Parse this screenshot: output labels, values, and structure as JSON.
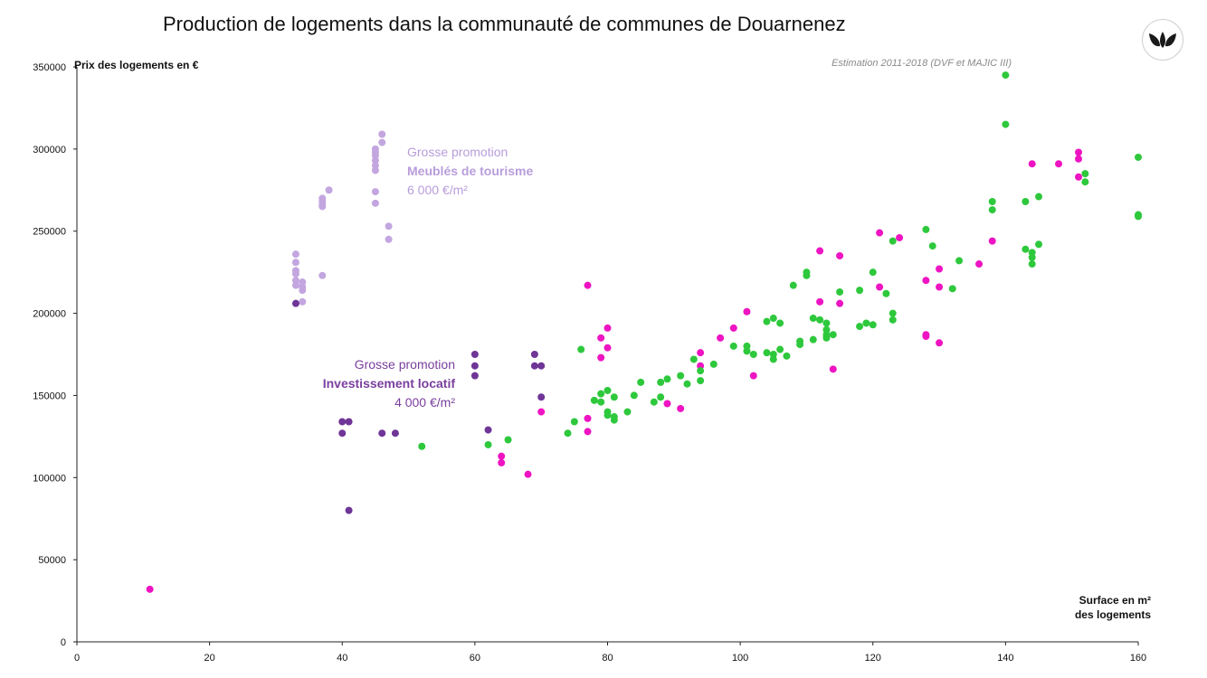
{
  "chart_data": {
    "type": "scatter",
    "title": "Production de logements dans la communauté de communes de Douarnenez",
    "subtitle": "Estimation 2011-2018 (DVF et MAJIC III)",
    "xlabel": [
      "Surface en m²",
      "des logements"
    ],
    "ylabel": "Prix des logements en €",
    "xlim": [
      0,
      160
    ],
    "ylim": [
      0,
      350000
    ],
    "x_ticks": [
      "0",
      "20",
      "40",
      "60",
      "80",
      "100",
      "120",
      "140",
      "160"
    ],
    "y_ticks": [
      "0",
      "50000",
      "100000",
      "150000",
      "200000",
      "250000",
      "300000",
      "350000"
    ],
    "grid": false,
    "legend": null,
    "annotations": [
      {
        "id": "meubles",
        "color": "#b89ddb",
        "lines": [
          {
            "text": "Grosse promotion",
            "bold": false
          },
          {
            "text": "Meublés de tourisme",
            "bold": true
          },
          {
            "text": "6 000 €/m²",
            "bold": false
          }
        ]
      },
      {
        "id": "invest",
        "color": "#7a3f9e",
        "lines": [
          {
            "text": "Grosse promotion",
            "bold": false
          },
          {
            "text": "Investissement locatif",
            "bold": true
          },
          {
            "text": "4 000 €/m²",
            "bold": false
          }
        ]
      }
    ],
    "series": [
      {
        "color": "#c3a6e0",
        "points": [
          [
            33,
            236000
          ],
          [
            33,
            231000
          ],
          [
            33,
            226000
          ],
          [
            33,
            224000
          ],
          [
            33,
            220000
          ],
          [
            33,
            217000
          ],
          [
            34,
            219000
          ],
          [
            34,
            216000
          ],
          [
            34,
            214000
          ],
          [
            34,
            207000
          ],
          [
            37,
            223000
          ],
          [
            37,
            270000
          ],
          [
            37,
            268000
          ],
          [
            37,
            266000
          ],
          [
            37,
            265000
          ],
          [
            38,
            275000
          ],
          [
            45,
            300000
          ],
          [
            45,
            298000
          ],
          [
            45,
            296000
          ],
          [
            45,
            293000
          ],
          [
            45,
            290000
          ],
          [
            45,
            287000
          ],
          [
            45,
            274000
          ],
          [
            45,
            267000
          ],
          [
            46,
            309000
          ],
          [
            46,
            304000
          ],
          [
            47,
            253000
          ],
          [
            47,
            245000
          ]
        ]
      },
      {
        "color": "#6f3597",
        "points": [
          [
            33,
            206000
          ],
          [
            40,
            134000
          ],
          [
            40,
            127000
          ],
          [
            41,
            134000
          ],
          [
            41,
            80000
          ],
          [
            46,
            127000
          ],
          [
            48,
            127000
          ],
          [
            60,
            175000
          ],
          [
            60,
            168000
          ],
          [
            60,
            162000
          ],
          [
            62,
            129000
          ],
          [
            69,
            175000
          ],
          [
            69,
            168000
          ],
          [
            70,
            168000
          ],
          [
            70,
            149000
          ]
        ]
      },
      {
        "color": "#ee14c2",
        "points": [
          [
            11,
            32000
          ],
          [
            64,
            113000
          ],
          [
            64,
            109000
          ],
          [
            68,
            102000
          ],
          [
            70,
            140000
          ],
          [
            77,
            217000
          ],
          [
            77,
            136000
          ],
          [
            77,
            128000
          ],
          [
            79,
            185000
          ],
          [
            79,
            173000
          ],
          [
            80,
            191000
          ],
          [
            80,
            179000
          ],
          [
            89,
            145000
          ],
          [
            91,
            142000
          ],
          [
            94,
            176000
          ],
          [
            94,
            168000
          ],
          [
            97,
            185000
          ],
          [
            99,
            191000
          ],
          [
            101,
            201000
          ],
          [
            102,
            162000
          ],
          [
            112,
            238000
          ],
          [
            112,
            207000
          ],
          [
            114,
            166000
          ],
          [
            115,
            235000
          ],
          [
            115,
            206000
          ],
          [
            121,
            249000
          ],
          [
            121,
            216000
          ],
          [
            124,
            246000
          ],
          [
            128,
            220000
          ],
          [
            128,
            187000
          ],
          [
            128,
            186000
          ],
          [
            130,
            227000
          ],
          [
            130,
            216000
          ],
          [
            130,
            182000
          ],
          [
            136,
            230000
          ],
          [
            138,
            244000
          ],
          [
            144,
            291000
          ],
          [
            148,
            291000
          ],
          [
            151,
            298000
          ],
          [
            151,
            294000
          ],
          [
            151,
            283000
          ]
        ]
      },
      {
        "color": "#2ec83c",
        "points": [
          [
            52,
            119000
          ],
          [
            62,
            120000
          ],
          [
            65,
            123000
          ],
          [
            74,
            127000
          ],
          [
            75,
            134000
          ],
          [
            76,
            178000
          ],
          [
            78,
            147000
          ],
          [
            79,
            151000
          ],
          [
            79,
            146000
          ],
          [
            80,
            153000
          ],
          [
            80,
            140000
          ],
          [
            80,
            138000
          ],
          [
            81,
            149000
          ],
          [
            81,
            137000
          ],
          [
            81,
            135000
          ],
          [
            83,
            140000
          ],
          [
            84,
            150000
          ],
          [
            85,
            158000
          ],
          [
            87,
            146000
          ],
          [
            88,
            149000
          ],
          [
            88,
            158000
          ],
          [
            89,
            160000
          ],
          [
            91,
            162000
          ],
          [
            92,
            157000
          ],
          [
            93,
            172000
          ],
          [
            94,
            165000
          ],
          [
            94,
            159000
          ],
          [
            96,
            169000
          ],
          [
            99,
            180000
          ],
          [
            101,
            180000
          ],
          [
            101,
            177000
          ],
          [
            102,
            175000
          ],
          [
            104,
            195000
          ],
          [
            104,
            176000
          ],
          [
            105,
            197000
          ],
          [
            105,
            175000
          ],
          [
            105,
            172000
          ],
          [
            106,
            194000
          ],
          [
            106,
            178000
          ],
          [
            107,
            174000
          ],
          [
            108,
            217000
          ],
          [
            109,
            183000
          ],
          [
            109,
            181000
          ],
          [
            110,
            225000
          ],
          [
            110,
            223000
          ],
          [
            111,
            197000
          ],
          [
            111,
            184000
          ],
          [
            112,
            196000
          ],
          [
            113,
            194000
          ],
          [
            113,
            190000
          ],
          [
            113,
            187000
          ],
          [
            113,
            185000
          ],
          [
            114,
            187000
          ],
          [
            115,
            213000
          ],
          [
            118,
            214000
          ],
          [
            118,
            192000
          ],
          [
            119,
            194000
          ],
          [
            120,
            225000
          ],
          [
            120,
            193000
          ],
          [
            122,
            212000
          ],
          [
            123,
            200000
          ],
          [
            123,
            196000
          ],
          [
            123,
            244000
          ],
          [
            128,
            251000
          ],
          [
            129,
            241000
          ],
          [
            132,
            215000
          ],
          [
            133,
            232000
          ],
          [
            138,
            268000
          ],
          [
            138,
            263000
          ],
          [
            140,
            345000
          ],
          [
            140,
            315000
          ],
          [
            143,
            268000
          ],
          [
            143,
            239000
          ],
          [
            144,
            237000
          ],
          [
            144,
            234000
          ],
          [
            144,
            230000
          ],
          [
            145,
            271000
          ],
          [
            145,
            242000
          ],
          [
            152,
            285000
          ],
          [
            152,
            280000
          ],
          [
            160,
            295000
          ],
          [
            160,
            260000
          ],
          [
            160,
            259000
          ]
        ]
      }
    ]
  }
}
